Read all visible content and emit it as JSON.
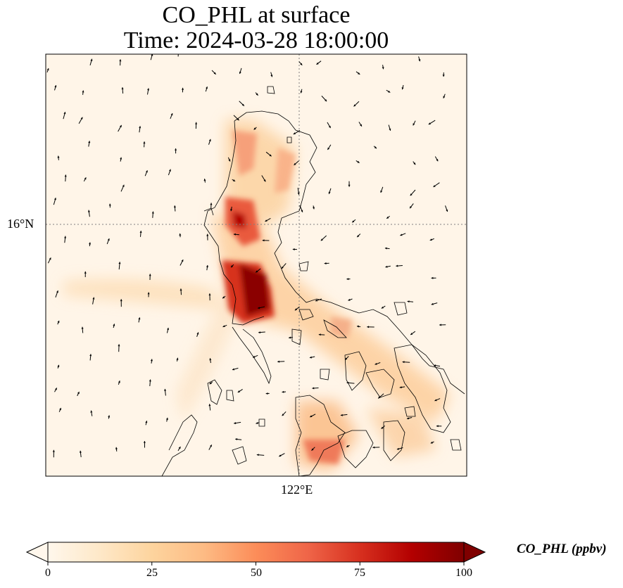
{
  "title": {
    "line1": "CO_PHL at surface",
    "line2": "Time: 2024-03-28 18:00:00"
  },
  "axes": {
    "lat_tick": "16°N",
    "lon_tick": "122°E"
  },
  "map": {
    "variable": "CO_PHL",
    "level": "surface",
    "features": [
      "coastlines",
      "gridlines",
      "wind-vectors"
    ],
    "colormap": "OrRd",
    "colors": {
      "low": "#fff7ec",
      "mid": "#fc8d59",
      "high": "#7f0000",
      "coastline": "#000000",
      "gridline": "#808080"
    }
  },
  "colorbar": {
    "label": "CO_PHL (ppbv)",
    "min": 0,
    "max": 100,
    "extend": "both",
    "ticks": [
      "0",
      "25",
      "50",
      "75",
      "100"
    ]
  }
}
